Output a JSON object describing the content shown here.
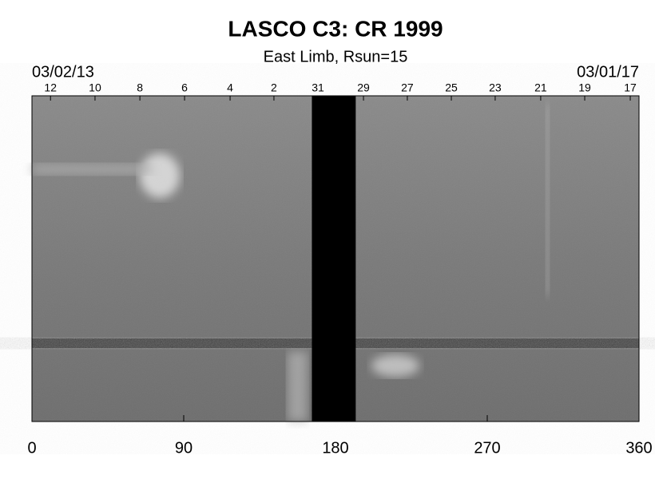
{
  "chart_data": {
    "type": "image",
    "title": "LASCO C3: CR 1999",
    "subtitle": "East Limb, Rsun=15",
    "start_date": "03/02/13",
    "end_date": "03/01/17",
    "xlim": [
      0,
      360
    ],
    "xticks": [
      0,
      90,
      180,
      270,
      360
    ],
    "top_ticks": [
      {
        "value": 11,
        "label": "12"
      },
      {
        "value": 37.4,
        "label": "10"
      },
      {
        "value": 64,
        "label": "8"
      },
      {
        "value": 90.5,
        "label": "6"
      },
      {
        "value": 117.5,
        "label": "4"
      },
      {
        "value": 143.5,
        "label": "2"
      },
      {
        "value": 169.6,
        "label": "31"
      },
      {
        "value": 196.6,
        "label": "29"
      },
      {
        "value": 222.6,
        "label": "27"
      },
      {
        "value": 248.7,
        "label": "25"
      },
      {
        "value": 274.7,
        "label": "23"
      },
      {
        "value": 301.7,
        "label": "21"
      },
      {
        "value": 327.8,
        "label": "19"
      },
      {
        "value": 354.8,
        "label": "17"
      }
    ],
    "data_gap": [
      166,
      192
    ]
  }
}
